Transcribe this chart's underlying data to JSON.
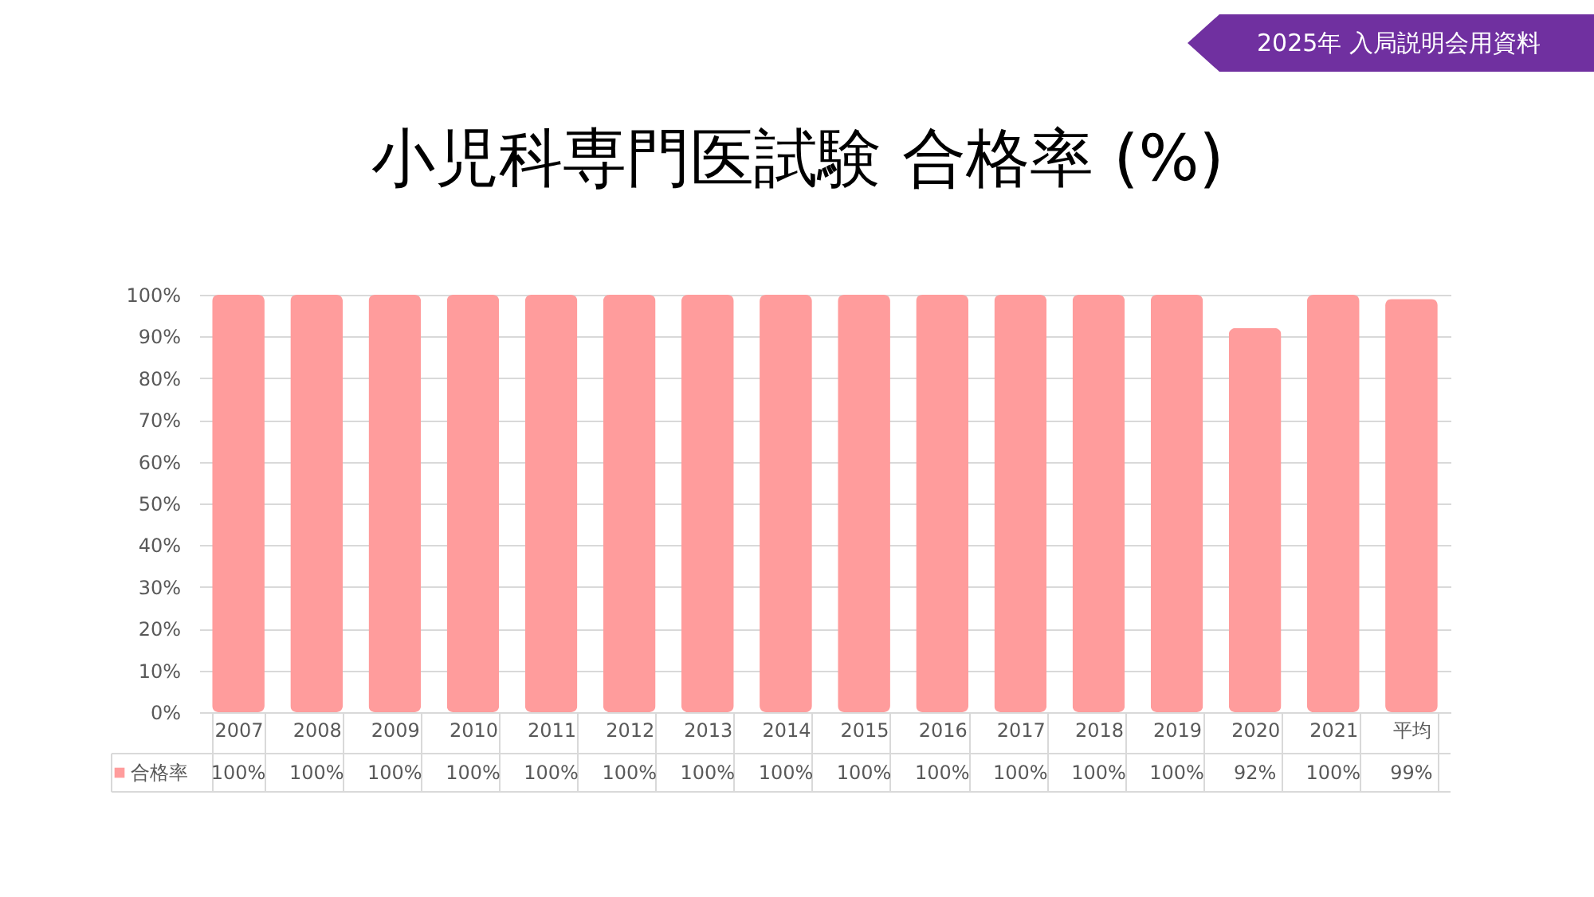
{
  "chart_data": {
    "type": "bar",
    "title": "小児科専門医試験 合格率 (%)",
    "annotations": [
      "2025年 入局説明会用資料"
    ],
    "categories": [
      "2007",
      "2008",
      "2009",
      "2010",
      "2011",
      "2012",
      "2013",
      "2014",
      "2015",
      "2016",
      "2017",
      "2018",
      "2019",
      "2020",
      "2021",
      "平均"
    ],
    "series": [
      {
        "name": "合格率",
        "color": "#ff9c9c",
        "values": [
          100,
          100,
          100,
          100,
          100,
          100,
          100,
          100,
          100,
          100,
          100,
          100,
          100,
          92,
          100,
          99
        ],
        "value_labels": [
          "100%",
          "100%",
          "100%",
          "100%",
          "100%",
          "100%",
          "100%",
          "100%",
          "100%",
          "100%",
          "100%",
          "100%",
          "100%",
          "92%",
          "100%",
          "99%"
        ]
      }
    ],
    "ylim": [
      0,
      100
    ],
    "yticks": [
      {
        "value": 0,
        "label": "0%"
      },
      {
        "value": 10,
        "label": "10%"
      },
      {
        "value": 20,
        "label": "20%"
      },
      {
        "value": 30,
        "label": "30%"
      },
      {
        "value": 40,
        "label": "40%"
      },
      {
        "value": 50,
        "label": "50%"
      },
      {
        "value": 60,
        "label": "60%"
      },
      {
        "value": 70,
        "label": "70%"
      },
      {
        "value": 80,
        "label": "80%"
      },
      {
        "value": 90,
        "label": "90%"
      },
      {
        "value": 100,
        "label": "100%"
      }
    ],
    "grid": "y",
    "legend": "bottom left"
  }
}
